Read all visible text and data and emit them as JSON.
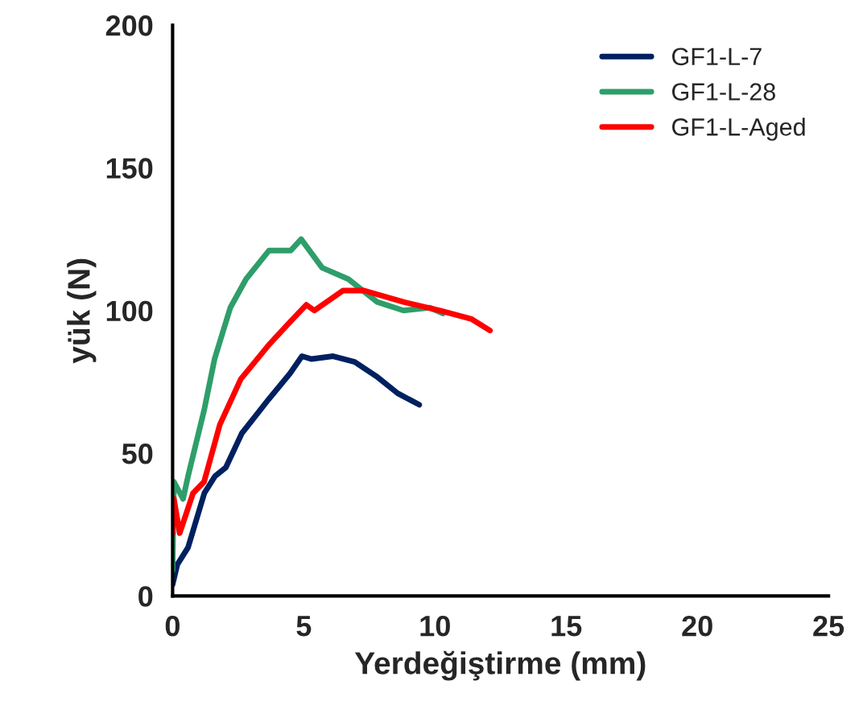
{
  "chart_data": {
    "type": "line",
    "xlabel": "Yerdeğiştirme (mm)",
    "ylabel": "yük (N)",
    "xlim": [
      0,
      25
    ],
    "ylim": [
      0,
      200
    ],
    "xticks": [
      0,
      5,
      10,
      15,
      20,
      25
    ],
    "yticks": [
      0,
      50,
      100,
      150,
      200
    ],
    "grid": false,
    "legend": "top right",
    "marker": "none",
    "line_style": "solid",
    "series": [
      {
        "name": "GF1-L-7",
        "color": "#002060",
        "x": [
          0,
          0.18,
          0.59,
          1.21,
          1.62,
          2.03,
          2.64,
          3.67,
          4.48,
          4.93,
          5.3,
          6.12,
          6.94,
          7.76,
          8.58,
          9.4
        ],
        "values": [
          4,
          11,
          17,
          36,
          42,
          45,
          57,
          69,
          78,
          84,
          83,
          84,
          82,
          77,
          71,
          67
        ]
      },
      {
        "name": "GF1-L-28",
        "color": "#2e9e6a",
        "x": [
          0,
          0.05,
          0.4,
          0.59,
          1.2,
          1.6,
          2.2,
          2.8,
          3.67,
          4.5,
          4.9,
          5.7,
          6.7,
          7.8,
          8.8,
          9.8,
          10.3
        ],
        "values": [
          9,
          40,
          34,
          42,
          65,
          83,
          101,
          111,
          121,
          121,
          125,
          115,
          111,
          103,
          100,
          101,
          99
        ]
      },
      {
        "name": "GF1-L-Aged",
        "color": "#ff0000",
        "x": [
          0,
          0.05,
          0.27,
          0.78,
          1.2,
          1.8,
          2.6,
          3.67,
          4.48,
          5.1,
          5.4,
          6.5,
          7.3,
          8.8,
          10.2,
          11.4,
          12.1
        ],
        "values": [
          22,
          34,
          22,
          36,
          40,
          60,
          76,
          88,
          96,
          102,
          100,
          107,
          107,
          103,
          100,
          97,
          93
        ]
      }
    ]
  }
}
